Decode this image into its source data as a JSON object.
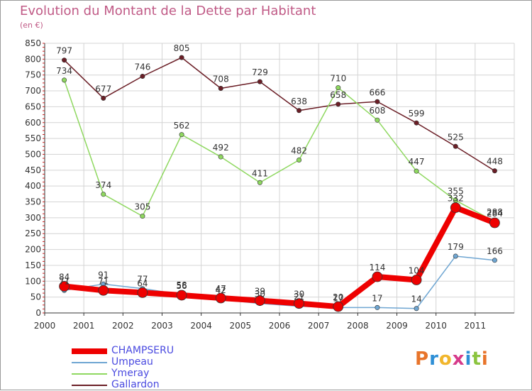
{
  "chart_data": {
    "type": "line",
    "title": "Evolution du Montant de la Dette par Habitant",
    "unit": "(en €)",
    "categories": [
      "2000",
      "2001",
      "2002",
      "2003",
      "2004",
      "2005",
      "2006",
      "2007",
      "2008",
      "2009",
      "2010",
      "2011"
    ],
    "ylim": [
      0,
      850
    ],
    "yticks": [
      0,
      50,
      100,
      150,
      200,
      250,
      300,
      350,
      400,
      450,
      500,
      550,
      600,
      650,
      700,
      750,
      800,
      850
    ],
    "grid": true,
    "legend_position": "bottom-left",
    "series": [
      {
        "name": "CHAMPSERU",
        "color": "#ee0000",
        "values": [
          84,
          71,
          64,
          56,
          47,
          39,
          30,
          20,
          114,
          104,
          332,
          284
        ]
      },
      {
        "name": "Umpeau",
        "color": "#6fa6d2",
        "values": [
          71,
          91,
          77,
          58,
          42,
          30,
          21,
          17,
          17,
          14,
          179,
          166
        ]
      },
      {
        "name": "Ymeray",
        "color": "#8fd860",
        "values": [
          734,
          374,
          305,
          562,
          492,
          411,
          482,
          710,
          608,
          447,
          355,
          288
        ]
      },
      {
        "name": "Gallardon",
        "color": "#6b1e26",
        "values": [
          797,
          677,
          746,
          805,
          708,
          729,
          638,
          658,
          666,
          599,
          525,
          448
        ]
      }
    ]
  },
  "logo": {
    "text": "Proxiti",
    "letters": [
      {
        "ch": "P",
        "color": "#e8742a"
      },
      {
        "ch": "r",
        "color": "#2e8fd6"
      },
      {
        "ch": "o",
        "color": "#f1b62c"
      },
      {
        "ch": "x",
        "color": "#d63a8a"
      },
      {
        "ch": "i",
        "color": "#2e8fd6"
      },
      {
        "ch": "t",
        "color": "#8bc43f"
      },
      {
        "ch": "i",
        "color": "#e8742a"
      }
    ]
  }
}
